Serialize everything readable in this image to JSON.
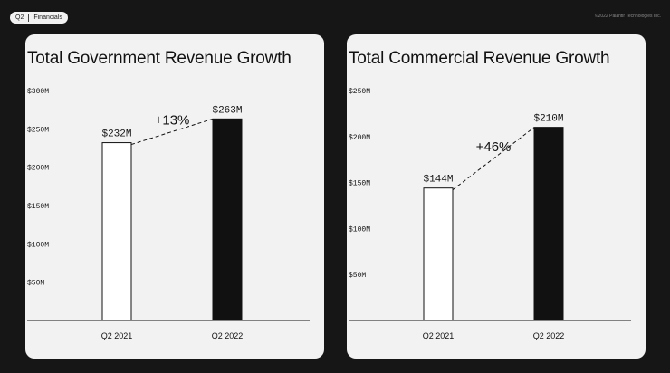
{
  "header": {
    "quarter": "Q2",
    "section": "Financials"
  },
  "footer": {
    "copyright": "©2022 Palantir Technologies Inc."
  },
  "chart_data": [
    {
      "type": "bar",
      "title": "Total Government Revenue Growth",
      "categories": [
        "Q2 2021",
        "Q2 2022"
      ],
      "values": [
        232,
        263
      ],
      "value_labels": [
        "$232M",
        "$263M"
      ],
      "growth_label": "+13%",
      "ylim": [
        0,
        300
      ],
      "yticks": [
        50,
        100,
        150,
        200,
        250,
        300
      ],
      "ytick_labels": [
        "$50M",
        "$100M",
        "$150M",
        "$200M",
        "$250M",
        "$300M"
      ],
      "bar_fills": [
        "#ffffff",
        "#111111"
      ],
      "xlabel": "",
      "ylabel": ""
    },
    {
      "type": "bar",
      "title": "Total Commercial Revenue Growth",
      "categories": [
        "Q2 2021",
        "Q2 2022"
      ],
      "values": [
        144,
        210
      ],
      "value_labels": [
        "$144M",
        "$210M"
      ],
      "growth_label": "+46%",
      "ylim": [
        0,
        250
      ],
      "yticks": [
        50,
        100,
        150,
        200,
        250
      ],
      "ytick_labels": [
        "$50M",
        "$100M",
        "$150M",
        "$200M",
        "$250M"
      ],
      "bar_fills": [
        "#ffffff",
        "#111111"
      ],
      "xlabel": "",
      "ylabel": ""
    }
  ]
}
